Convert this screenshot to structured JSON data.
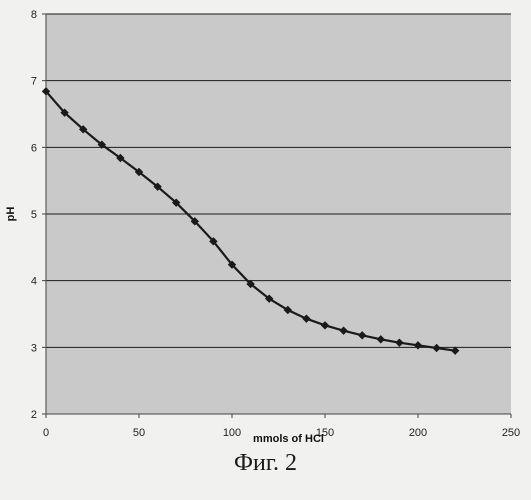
{
  "caption": "Фиг. 2",
  "chart_data": {
    "type": "line",
    "title": "",
    "xlabel": "mmols of HCl",
    "ylabel": "pH",
    "xlim": [
      0,
      250
    ],
    "ylim": [
      2,
      8
    ],
    "xticks": [
      "0",
      "50",
      "100",
      "150",
      "200",
      "250"
    ],
    "yticks": [
      "2",
      "3",
      "4",
      "5",
      "6",
      "7",
      "8"
    ],
    "grid": "horizontal",
    "legend": "none",
    "colors": {
      "plot_background": "#c9c9c9",
      "line": "#1a1a1a",
      "gridline": "#1a1a1a"
    },
    "series": [
      {
        "x": [
          0,
          10,
          20,
          30,
          40,
          50,
          60,
          70,
          80,
          90,
          100,
          110,
          120,
          130,
          140,
          150,
          160,
          170,
          180,
          190,
          200,
          210,
          220
        ],
        "y": [
          6.84,
          6.52,
          6.27,
          6.04,
          5.84,
          5.63,
          5.41,
          5.17,
          4.89,
          4.59,
          4.24,
          3.95,
          3.73,
          3.56,
          3.43,
          3.33,
          3.25,
          3.18,
          3.12,
          3.07,
          3.03,
          2.99,
          2.95
        ]
      }
    ]
  }
}
